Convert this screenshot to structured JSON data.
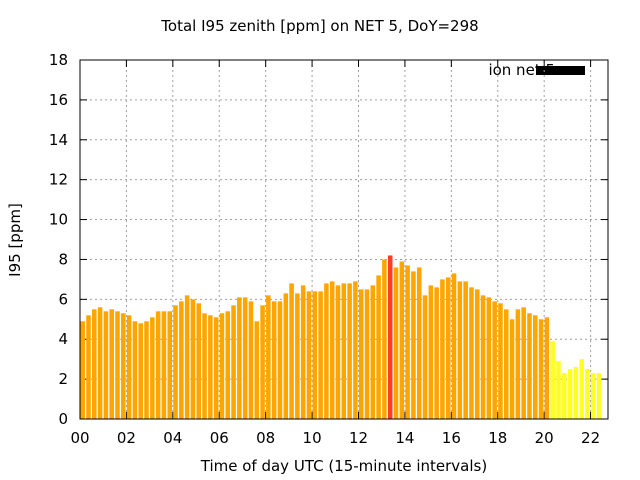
{
  "chart_data": {
    "type": "bar",
    "title": "Total I95 zenith [ppm] on NET 5, DoY=298",
    "xlabel": "Time of day UTC (15-minute intervals)",
    "ylabel": "I95 [ppm]",
    "xlim": [
      0,
      22.75
    ],
    "ylim": [
      0,
      18
    ],
    "x_ticks": [
      "00",
      "02",
      "04",
      "06",
      "08",
      "10",
      "12",
      "14",
      "16",
      "18",
      "20",
      "22"
    ],
    "y_ticks": [
      "0",
      "2",
      "4",
      "6",
      "8",
      "10",
      "12",
      "14",
      "16",
      "18"
    ],
    "grid": true,
    "legend": {
      "label": "ion net 5",
      "color": "#000000",
      "position": "top-right"
    },
    "bar_interval_hours": 0.25,
    "values": [
      4.9,
      5.2,
      5.5,
      5.6,
      5.4,
      5.5,
      5.4,
      5.3,
      5.2,
      4.9,
      4.8,
      4.9,
      5.1,
      5.4,
      5.4,
      5.4,
      5.7,
      5.9,
      6.2,
      6.0,
      5.8,
      5.3,
      5.2,
      5.1,
      5.3,
      5.4,
      5.7,
      6.1,
      6.1,
      5.9,
      4.9,
      5.7,
      6.2,
      5.9,
      5.9,
      6.3,
      6.8,
      6.3,
      6.7,
      6.4,
      6.4,
      6.4,
      6.8,
      6.9,
      6.7,
      6.8,
      6.8,
      6.9,
      6.5,
      6.5,
      6.7,
      7.2,
      8.0,
      8.2,
      7.6,
      7.9,
      7.7,
      7.4,
      7.6,
      6.2,
      6.7,
      6.6,
      7.0,
      7.1,
      7.3,
      6.9,
      6.9,
      6.6,
      6.5,
      6.2,
      6.1,
      5.9,
      5.8,
      5.5,
      5.0,
      5.5,
      5.6,
      5.3,
      5.2,
      5.0,
      5.1,
      3.9,
      2.9,
      2.3,
      2.5,
      2.6,
      3.0,
      2.5,
      2.3,
      2.3
    ],
    "colors": {
      "normal": "#ffa500",
      "peak": "#ff3c2a",
      "low": "#ffff24",
      "axis": "#000000",
      "grid": "#a0a0a0"
    },
    "peak_index": 53,
    "low_from_index": 81
  }
}
